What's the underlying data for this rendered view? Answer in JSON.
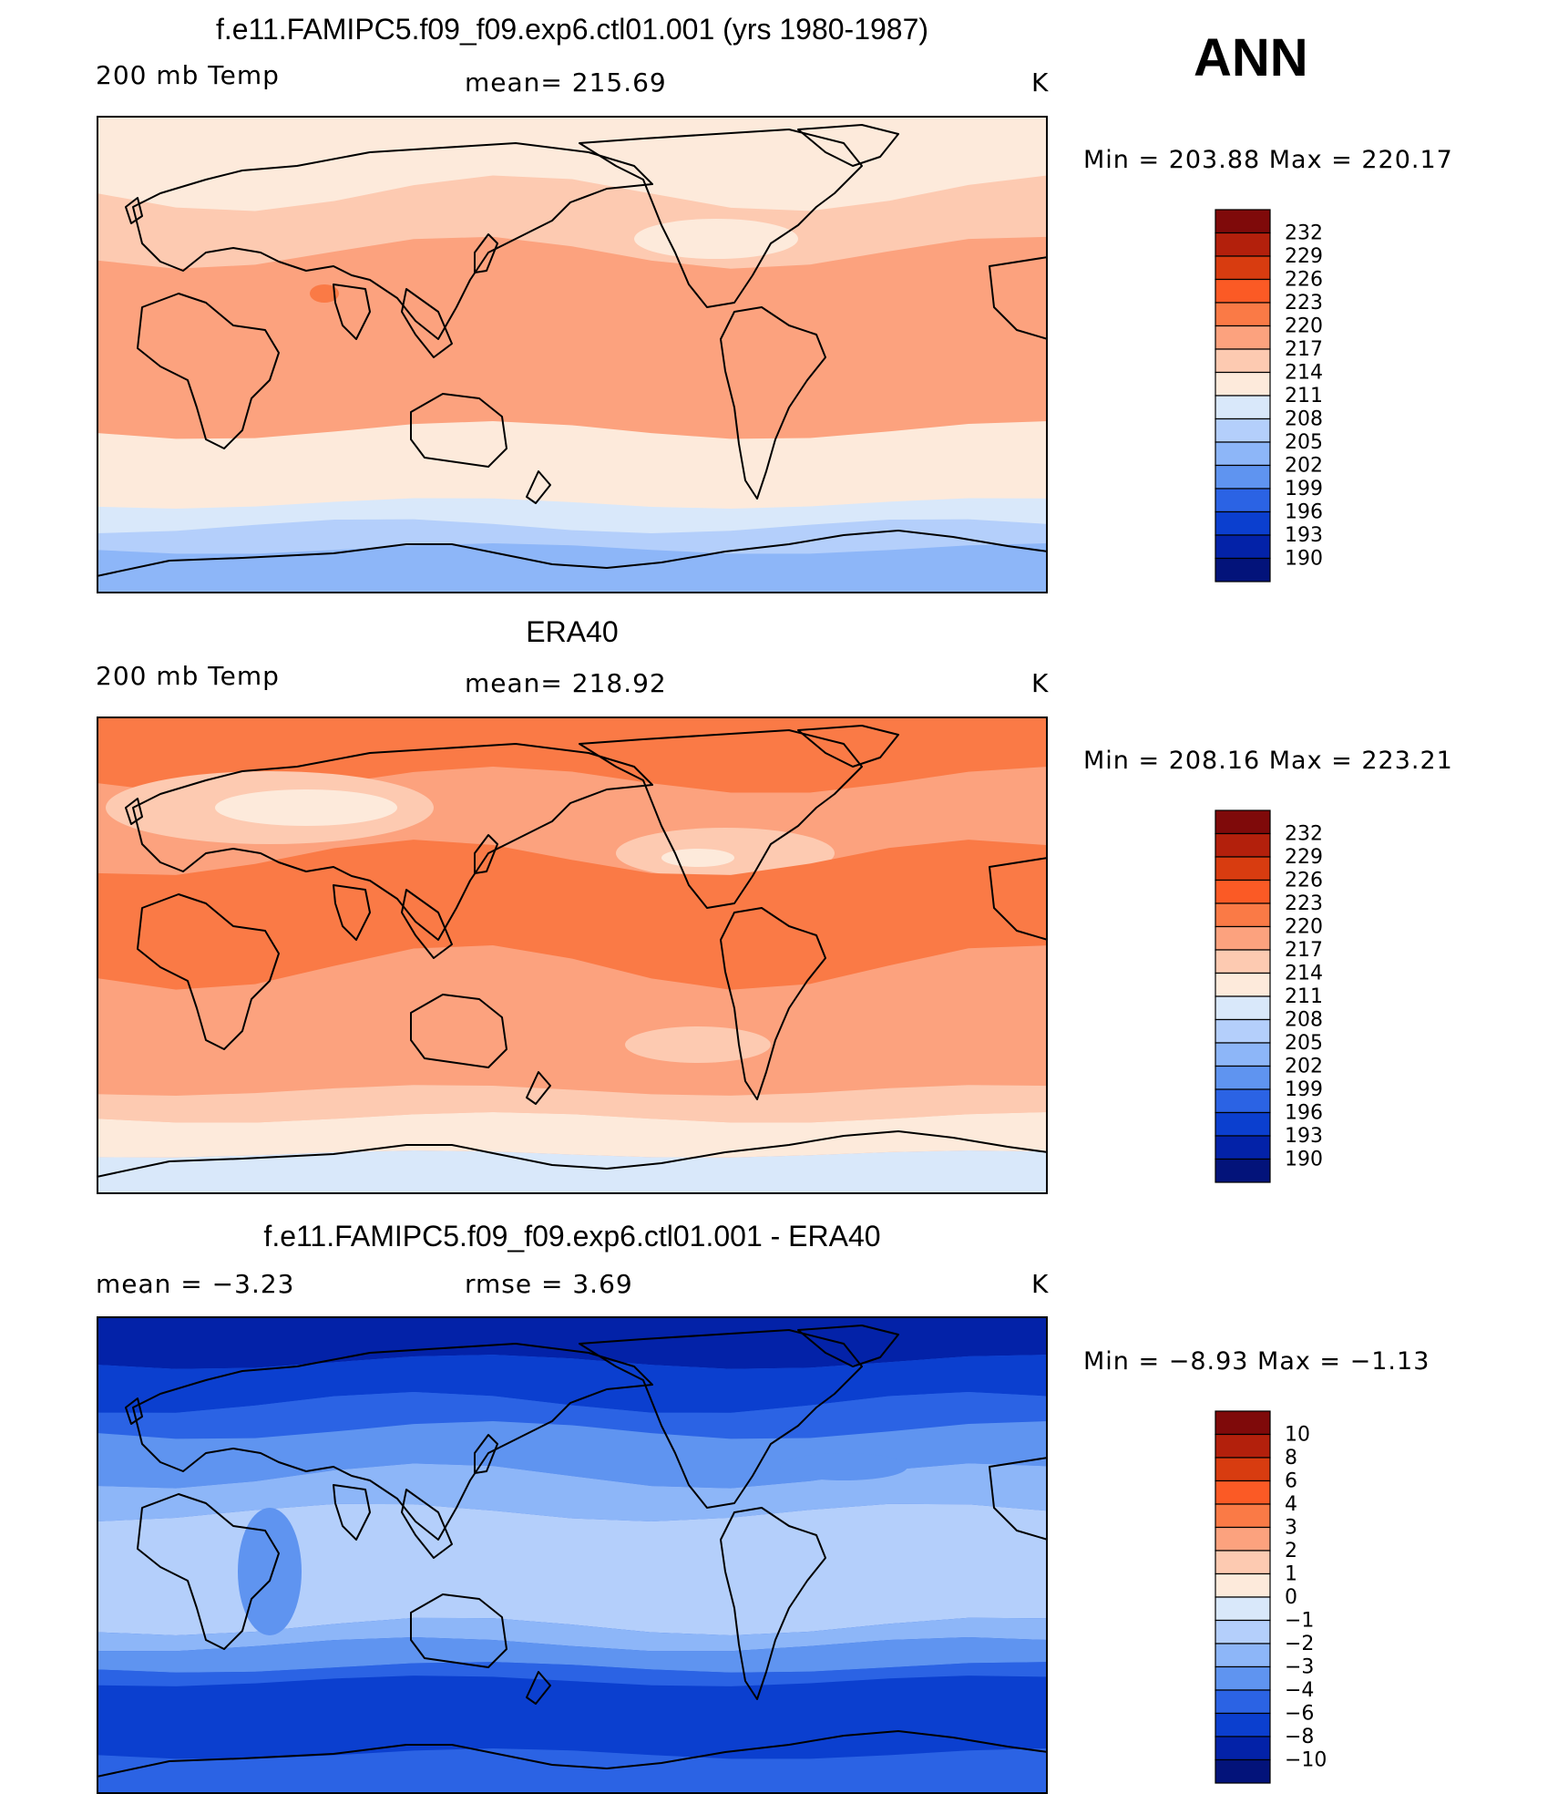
{
  "season": "ANN",
  "panels": [
    {
      "title": "f.e11.FAMIPC5.f09_f09.exp6.ctl01.001 (yrs 1980-1987)",
      "left": "200 mb Temp",
      "center": "mean= 215.69",
      "unit": "K",
      "minmax": "Min = 203.88 Max = 220.17",
      "colorbar_labels": [
        "232",
        "229",
        "226",
        "223",
        "220",
        "217",
        "214",
        "211",
        "208",
        "205",
        "202",
        "199",
        "196",
        "193",
        "190"
      ]
    },
    {
      "title": "ERA40",
      "left": "200 mb Temp",
      "center": "mean= 218.92",
      "unit": "K",
      "minmax": "Min = 208.16 Max = 223.21",
      "colorbar_labels": [
        "232",
        "229",
        "226",
        "223",
        "220",
        "217",
        "214",
        "211",
        "208",
        "205",
        "202",
        "199",
        "196",
        "193",
        "190"
      ]
    },
    {
      "title": "f.e11.FAMIPC5.f09_f09.exp6.ctl01.001 - ERA40",
      "left": "mean =   −3.23",
      "center": "rmse =    3.69",
      "unit": "K",
      "minmax": "Min =  −8.93 Max =  −1.13",
      "colorbar_labels": [
        "10",
        "8",
        "6",
        "4",
        "3",
        "2",
        "1",
        "0",
        "−1",
        "−2",
        "−3",
        "−4",
        "−6",
        "−8",
        "−10"
      ]
    }
  ],
  "colors": {
    "colorbar": [
      "#7f0a0a",
      "#b3200c",
      "#d83c10",
      "#fb5a25",
      "#fa7a46",
      "#fca27e",
      "#fdcab1",
      "#fdeadb",
      "#d9e8fa",
      "#b4cffb",
      "#8db6f8",
      "#5f94f0",
      "#2b63e4",
      "#0b3fcf",
      "#0322a8",
      "#03137a"
    ],
    "land_outline": "#000000"
  }
}
